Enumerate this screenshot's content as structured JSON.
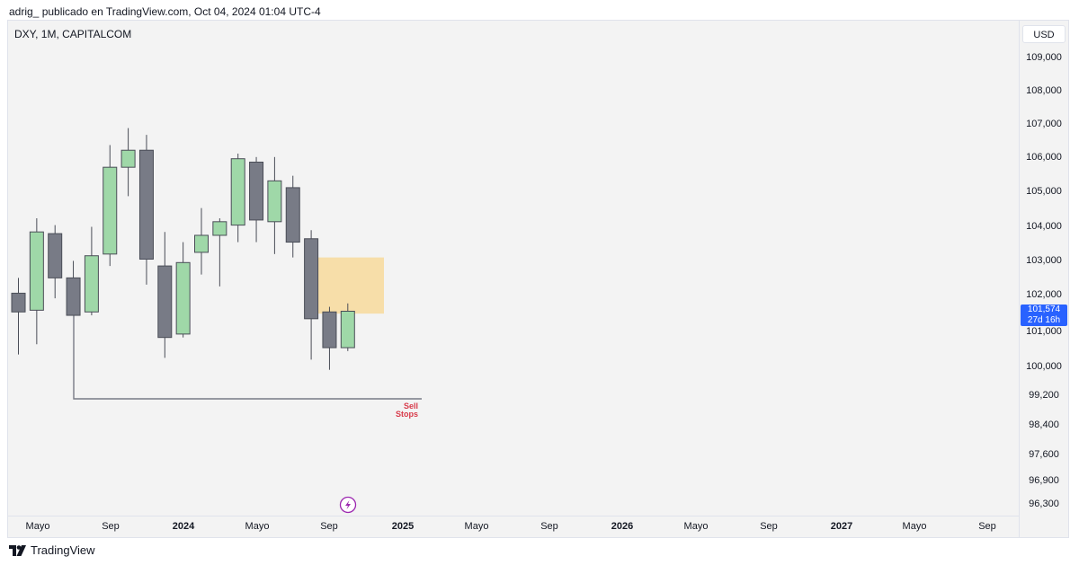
{
  "header": {
    "text": "adrig_ publicado en TradingView.com, Oct 04, 2024 01:04 UTC-4"
  },
  "symbol": {
    "text": "DXY, 1M, CAPITALCOM"
  },
  "currency": "USD",
  "current_price": {
    "value": "101,574",
    "countdown": "27d 16h"
  },
  "footer": {
    "brand": "TradingView"
  },
  "colors": {
    "up": "#9fd8a8",
    "down": "#787b86",
    "zone": "#f7dca1",
    "accent": "#2962ff",
    "sell": "#d83a4a",
    "background": "#f3f3f3"
  },
  "chart_data": {
    "type": "candlestick",
    "title": "DXY, 1M, CAPITALCOM",
    "y_axis": {
      "label": "USD",
      "tick_labels": [
        "109,000",
        "108,000",
        "107,000",
        "106,000",
        "105,000",
        "104,000",
        "103,000",
        "102,000",
        "101,000",
        "100,000",
        "99,200",
        "98,400",
        "97,600",
        "96,900",
        "96,300"
      ]
    },
    "x_axis": {
      "tick_labels": [
        {
          "label": "Mayo",
          "bold": false
        },
        {
          "label": "Sep",
          "bold": false
        },
        {
          "label": "2024",
          "bold": true
        },
        {
          "label": "Mayo",
          "bold": false
        },
        {
          "label": "Sep",
          "bold": false
        },
        {
          "label": "2025",
          "bold": true
        },
        {
          "label": "Mayo",
          "bold": false
        },
        {
          "label": "Sep",
          "bold": false
        },
        {
          "label": "2026",
          "bold": true
        },
        {
          "label": "Mayo",
          "bold": false
        },
        {
          "label": "Sep",
          "bold": false
        },
        {
          "label": "2027",
          "bold": true
        },
        {
          "label": "Mayo",
          "bold": false
        },
        {
          "label": "Sep",
          "bold": false
        }
      ]
    },
    "candles": [
      {
        "o": 102.1,
        "h": 102.55,
        "l": 100.3,
        "c": 101.55
      },
      {
        "o": 101.6,
        "h": 104.3,
        "l": 100.6,
        "c": 103.9
      },
      {
        "o": 103.85,
        "h": 104.1,
        "l": 101.95,
        "c": 102.55
      },
      {
        "o": 102.55,
        "h": 103.05,
        "l": 101.5,
        "c": 101.45
      },
      {
        "o": 101.55,
        "h": 104.05,
        "l": 101.45,
        "c": 103.2
      },
      {
        "o": 103.25,
        "h": 106.45,
        "l": 102.9,
        "c": 105.8
      },
      {
        "o": 105.8,
        "h": 106.95,
        "l": 104.95,
        "c": 106.3
      },
      {
        "o": 106.3,
        "h": 106.75,
        "l": 102.35,
        "c": 103.1
      },
      {
        "o": 102.9,
        "h": 103.9,
        "l": 100.2,
        "c": 100.8
      },
      {
        "o": 100.9,
        "h": 103.6,
        "l": 100.8,
        "c": 103.0
      },
      {
        "o": 103.3,
        "h": 104.6,
        "l": 102.65,
        "c": 103.8
      },
      {
        "o": 103.8,
        "h": 104.3,
        "l": 102.3,
        "c": 104.2
      },
      {
        "o": 104.1,
        "h": 106.2,
        "l": 103.6,
        "c": 106.05
      },
      {
        "o": 105.95,
        "h": 106.1,
        "l": 103.6,
        "c": 104.25
      },
      {
        "o": 104.2,
        "h": 106.1,
        "l": 103.25,
        "c": 105.4
      },
      {
        "o": 105.2,
        "h": 105.55,
        "l": 103.15,
        "c": 103.6
      },
      {
        "o": 103.7,
        "h": 103.95,
        "l": 100.15,
        "c": 101.35
      },
      {
        "o": 101.55,
        "h": 101.7,
        "l": 99.85,
        "c": 100.5
      },
      {
        "o": 100.5,
        "h": 101.8,
        "l": 100.4,
        "c": 101.57
      }
    ],
    "annotations": [
      {
        "type": "zone",
        "price_top": 103.15,
        "price_bottom": 101.5
      },
      {
        "type": "level",
        "price": 99.2,
        "label": "Sell Stops"
      }
    ],
    "last_price": 101.574
  }
}
